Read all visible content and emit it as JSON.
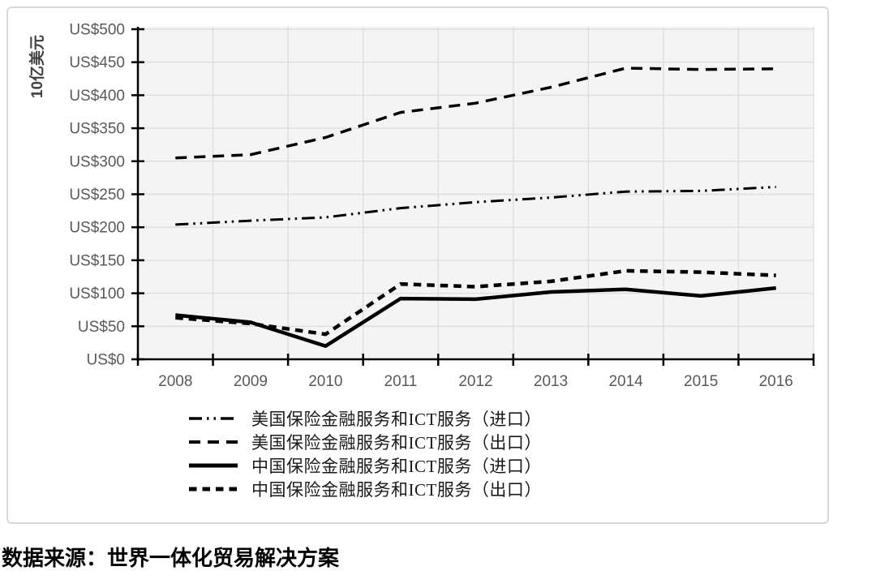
{
  "chart_data": {
    "type": "line",
    "title": "",
    "ylabel": "10亿美元",
    "xlabel": "",
    "categories": [
      "2008",
      "2009",
      "2010",
      "2011",
      "2012",
      "2013",
      "2014",
      "2015",
      "2016"
    ],
    "ylim": [
      0,
      500
    ],
    "y_tick_step": 50,
    "y_tick_labels": [
      "US$0",
      "US$50",
      "US$100",
      "US$150",
      "US$200",
      "US$250",
      "US$300",
      "US$350",
      "US$400",
      "US$450",
      "US$500"
    ],
    "grid": true,
    "legend_position": "bottom",
    "line_color": "#000000",
    "plot_bg": "#f4f4f4",
    "grid_color": "#dedede",
    "tick_label_color": "#595959",
    "series": [
      {
        "name": "美国保险金融服务和ICT服务（进口）",
        "style": "dash-dot-dot",
        "width": 3,
        "values": [
          204,
          210,
          215,
          229,
          238,
          245,
          254,
          255,
          261
        ]
      },
      {
        "name": "美国保险金融服务和ICT服务（出口）",
        "style": "dashed",
        "width": 3.5,
        "values": [
          305,
          310,
          336,
          374,
          388,
          412,
          441,
          439,
          440
        ]
      },
      {
        "name": "中国保险金融服务和ICT服务（进口）",
        "style": "solid",
        "width": 4.5,
        "values": [
          67,
          56,
          20,
          92,
          91,
          102,
          106,
          96,
          108
        ]
      },
      {
        "name": "中国保险金融服务和ICT服务（出口）",
        "style": "short-dash",
        "width": 4.5,
        "values": [
          63,
          54,
          38,
          114,
          110,
          118,
          134,
          132,
          127
        ]
      }
    ]
  },
  "source_note": "数据来源：世界一体化贸易解决方案"
}
